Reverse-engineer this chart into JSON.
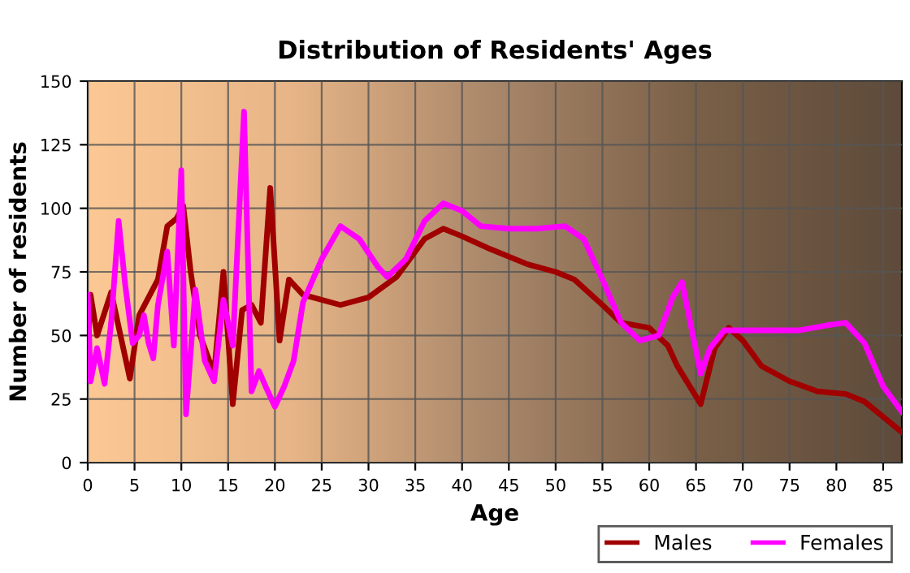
{
  "chart_data": {
    "type": "line",
    "title": "Distribution of Residents' Ages",
    "xlabel": "Age",
    "ylabel": "Number of residents",
    "xlim": [
      0,
      87
    ],
    "xticks": [
      0,
      5,
      10,
      15,
      20,
      25,
      30,
      35,
      40,
      45,
      50,
      55,
      60,
      65,
      70,
      75,
      80,
      85
    ],
    "ylim": [
      0,
      150
    ],
    "yticks": [
      0,
      25,
      50,
      75,
      100,
      125,
      150
    ],
    "grid": true,
    "legend": "bottom right",
    "marker": "none",
    "line_style": "solid",
    "series": [
      {
        "name": "Males",
        "color": "#a00000",
        "x": [
          0,
          0.3,
          1,
          2.5,
          4.5,
          5.5,
          7.5,
          8.5,
          9.5,
          10.2,
          11,
          12,
          13.5,
          14.5,
          15.5,
          16.5,
          17.5,
          18.5,
          19.5,
          20.5,
          21.5,
          23,
          27,
          30,
          33,
          36,
          38,
          40,
          43,
          47,
          50,
          52,
          55,
          57,
          60,
          62,
          63,
          65.5,
          67,
          68.5,
          70,
          72,
          75,
          78,
          81,
          83,
          87
        ],
        "values": [
          47,
          66,
          50,
          67,
          33,
          58,
          72,
          93,
          96,
          101,
          75,
          50,
          35,
          75,
          23,
          60,
          62,
          55,
          108,
          48,
          72,
          66,
          62,
          65,
          73,
          88,
          92,
          89,
          84,
          78,
          75,
          72,
          62,
          55,
          53,
          46,
          38,
          23,
          45,
          53,
          48,
          38,
          32,
          28,
          27,
          24,
          12
        ]
      },
      {
        "name": "Females",
        "color": "#ff00ff",
        "x": [
          0,
          0.3,
          1,
          1.8,
          2.5,
          3.3,
          4,
          4.8,
          5.5,
          6,
          6.5,
          7,
          7.5,
          8.5,
          9.2,
          10,
          10.5,
          11.5,
          12.5,
          13.5,
          14.5,
          15.5,
          16.7,
          17.5,
          18.3,
          19,
          20,
          21,
          22,
          23,
          25,
          27,
          29,
          31,
          32,
          34,
          36,
          38,
          40,
          42,
          45,
          48,
          51,
          53,
          55,
          57,
          59,
          61,
          62.5,
          63.5,
          65.5,
          66.5,
          68,
          72,
          76,
          79,
          81,
          83,
          85,
          87
        ],
        "values": [
          66,
          32,
          45,
          31,
          55,
          95,
          70,
          47,
          50,
          58,
          47,
          41,
          62,
          83,
          46,
          115,
          19,
          68,
          40,
          32,
          64,
          46,
          138,
          28,
          36,
          30,
          22,
          30,
          40,
          63,
          80,
          93,
          88,
          77,
          73,
          80,
          95,
          102,
          99,
          93,
          92,
          92,
          93,
          88,
          72,
          55,
          48,
          50,
          65,
          71,
          35,
          45,
          52,
          52,
          52,
          54,
          55,
          47,
          30,
          20
        ]
      }
    ]
  }
}
